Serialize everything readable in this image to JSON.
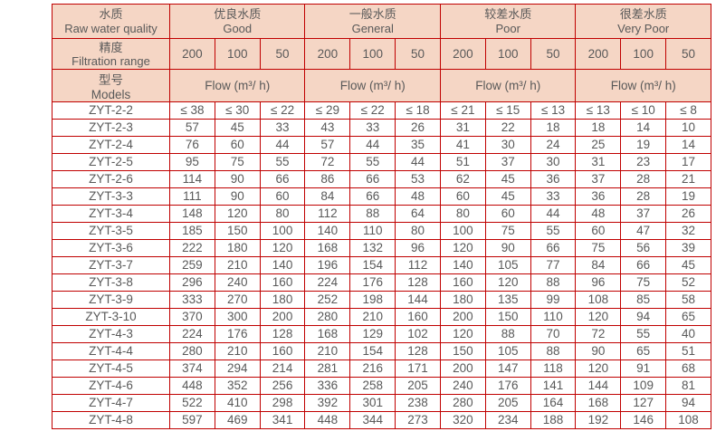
{
  "colors": {
    "border_red": "#c00000",
    "header_bg": "#f5d6c5",
    "text_gray": "#595959",
    "page_bg": "#ffffff"
  },
  "table": {
    "corner": {
      "row1_zh": "水质",
      "row1_en": "Raw water quality",
      "row2_zh": "精度",
      "row2_en": "Filtration range",
      "row3_zh": "型号",
      "row3_en": "Models"
    },
    "groups": [
      {
        "zh": "优良水质",
        "en": "Good"
      },
      {
        "zh": "一般水质",
        "en": "General"
      },
      {
        "zh": "较差水质",
        "en": "Poor"
      },
      {
        "zh": "很差水质",
        "en": "Very Poor"
      }
    ],
    "filtration_values": [
      "200",
      "100",
      "50"
    ],
    "flow_label": "Flow (m³/ h)",
    "rows": [
      {
        "model": "ZYT-2-2",
        "values": [
          "≤ 38",
          "≤ 30",
          "≤ 22",
          "≤ 29",
          "≤ 22",
          "≤ 18",
          "≤ 21",
          "≤ 15",
          "≤ 13",
          "≤ 13",
          "≤ 10",
          "≤ 8"
        ]
      },
      {
        "model": "ZYT-2-3",
        "values": [
          "57",
          "45",
          "33",
          "43",
          "33",
          "26",
          "31",
          "22",
          "18",
          "18",
          "14",
          "10"
        ]
      },
      {
        "model": "ZYT-2-4",
        "values": [
          "76",
          "60",
          "44",
          "57",
          "44",
          "35",
          "41",
          "30",
          "24",
          "25",
          "19",
          "14"
        ]
      },
      {
        "model": "ZYT-2-5",
        "values": [
          "95",
          "75",
          "55",
          "72",
          "55",
          "44",
          "51",
          "37",
          "30",
          "31",
          "23",
          "17"
        ]
      },
      {
        "model": "ZYT-2-6",
        "values": [
          "114",
          "90",
          "66",
          "86",
          "66",
          "53",
          "62",
          "45",
          "36",
          "37",
          "28",
          "21"
        ]
      },
      {
        "model": "ZYT-3-3",
        "values": [
          "111",
          "90",
          "60",
          "84",
          "66",
          "48",
          "60",
          "45",
          "33",
          "36",
          "28",
          "19"
        ]
      },
      {
        "model": "ZYT-3-4",
        "values": [
          "148",
          "120",
          "80",
          "112",
          "88",
          "64",
          "80",
          "60",
          "44",
          "48",
          "37",
          "26"
        ]
      },
      {
        "model": "ZYT-3-5",
        "values": [
          "185",
          "150",
          "100",
          "140",
          "110",
          "80",
          "100",
          "75",
          "55",
          "60",
          "47",
          "32"
        ]
      },
      {
        "model": "ZYT-3-6",
        "values": [
          "222",
          "180",
          "120",
          "168",
          "132",
          "96",
          "120",
          "90",
          "66",
          "75",
          "56",
          "39"
        ]
      },
      {
        "model": "ZYT-3-7",
        "values": [
          "259",
          "210",
          "140",
          "196",
          "154",
          "112",
          "140",
          "105",
          "77",
          "84",
          "66",
          "45"
        ]
      },
      {
        "model": "ZYT-3-8",
        "values": [
          "296",
          "240",
          "160",
          "224",
          "176",
          "128",
          "160",
          "120",
          "88",
          "96",
          "75",
          "52"
        ]
      },
      {
        "model": "ZYT-3-9",
        "values": [
          "333",
          "270",
          "180",
          "252",
          "198",
          "144",
          "180",
          "135",
          "99",
          "108",
          "85",
          "58"
        ]
      },
      {
        "model": "ZYT-3-10",
        "values": [
          "370",
          "300",
          "200",
          "280",
          "210",
          "160",
          "200",
          "150",
          "110",
          "120",
          "94",
          "65"
        ]
      },
      {
        "model": "ZYT-4-3",
        "values": [
          "224",
          "176",
          "128",
          "168",
          "129",
          "102",
          "120",
          "88",
          "70",
          "72",
          "55",
          "40"
        ]
      },
      {
        "model": "ZYT-4-4",
        "values": [
          "280",
          "210",
          "160",
          "210",
          "154",
          "128",
          "150",
          "105",
          "88",
          "90",
          "65",
          "51"
        ]
      },
      {
        "model": "ZYT-4-5",
        "values": [
          "374",
          "294",
          "214",
          "281",
          "216",
          "171",
          "200",
          "147",
          "118",
          "120",
          "91",
          "68"
        ]
      },
      {
        "model": "ZYT-4-6",
        "values": [
          "448",
          "352",
          "256",
          "336",
          "258",
          "205",
          "240",
          "176",
          "141",
          "144",
          "109",
          "81"
        ]
      },
      {
        "model": "ZYT-4-7",
        "values": [
          "522",
          "410",
          "298",
          "392",
          "301",
          "238",
          "280",
          "205",
          "164",
          "168",
          "127",
          "94"
        ]
      },
      {
        "model": "ZYT-4-8",
        "values": [
          "597",
          "469",
          "341",
          "448",
          "344",
          "273",
          "320",
          "234",
          "188",
          "192",
          "146",
          "108"
        ]
      }
    ]
  }
}
